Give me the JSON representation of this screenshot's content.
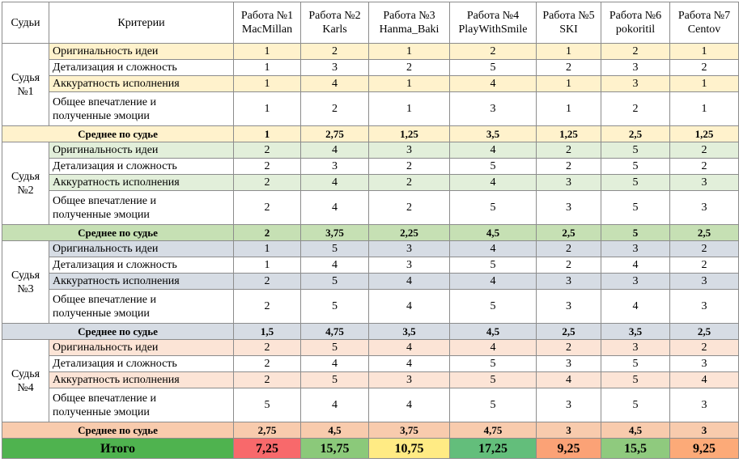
{
  "header": {
    "judges_label": "Судьи",
    "criteria_label": "Критерии",
    "works": [
      {
        "label": "Работа №1",
        "name": "MacMillan"
      },
      {
        "label": "Работа №2",
        "name": "Karls"
      },
      {
        "label": "Работа №3",
        "name": "Hanma_Baki"
      },
      {
        "label": "Работа №4",
        "name": "PlayWithSmile"
      },
      {
        "label": "Работа №5",
        "name": "SKI"
      },
      {
        "label": "Работа №6",
        "name": "pokoritil"
      },
      {
        "label": "Работа №7",
        "name": "Centov"
      }
    ]
  },
  "blocks": [
    {
      "judge": "Судья №1",
      "rows": [
        {
          "criterion": "Оригинальность идеи",
          "scores": [
            "1",
            "2",
            "1",
            "2",
            "1",
            "2",
            "1"
          ]
        },
        {
          "criterion": "Детализация и сложность",
          "scores": [
            "1",
            "3",
            "2",
            "5",
            "2",
            "3",
            "2"
          ]
        },
        {
          "criterion": "Аккуратность исполнения",
          "scores": [
            "1",
            "4",
            "1",
            "4",
            "1",
            "3",
            "1"
          ]
        },
        {
          "criterion": "Общее впечатление и полученные эмоции",
          "scores": [
            "1",
            "2",
            "1",
            "3",
            "1",
            "2",
            "1"
          ]
        }
      ],
      "average": {
        "label": "Среднее по судье",
        "scores": [
          "1",
          "2,75",
          "1,25",
          "3,5",
          "1,25",
          "2,5",
          "1,25"
        ]
      }
    },
    {
      "judge": "Судья №2",
      "rows": [
        {
          "criterion": "Оригинальность идеи",
          "scores": [
            "2",
            "4",
            "3",
            "4",
            "2",
            "5",
            "2"
          ]
        },
        {
          "criterion": "Детализация и сложность",
          "scores": [
            "2",
            "3",
            "2",
            "5",
            "2",
            "5",
            "2"
          ]
        },
        {
          "criterion": "Аккуратность исполнения",
          "scores": [
            "2",
            "4",
            "2",
            "4",
            "3",
            "5",
            "3"
          ]
        },
        {
          "criterion": "Общее впечатление и полученные эмоции",
          "scores": [
            "2",
            "4",
            "2",
            "5",
            "3",
            "5",
            "3"
          ]
        }
      ],
      "average": {
        "label": "Среднее по судье",
        "scores": [
          "2",
          "3,75",
          "2,25",
          "4,5",
          "2,5",
          "5",
          "2,5"
        ]
      }
    },
    {
      "judge": "Судья №3",
      "rows": [
        {
          "criterion": "Оригинальность идеи",
          "scores": [
            "1",
            "5",
            "3",
            "4",
            "2",
            "3",
            "2"
          ]
        },
        {
          "criterion": "Детализация и сложность",
          "scores": [
            "1",
            "4",
            "3",
            "5",
            "2",
            "4",
            "2"
          ]
        },
        {
          "criterion": "Аккуратность исполнения",
          "scores": [
            "2",
            "5",
            "4",
            "4",
            "3",
            "3",
            "3"
          ]
        },
        {
          "criterion": "Общее впечатление и полученные эмоции",
          "scores": [
            "2",
            "5",
            "4",
            "5",
            "3",
            "4",
            "3"
          ]
        }
      ],
      "average": {
        "label": "Среднее по судье",
        "scores": [
          "1,5",
          "4,75",
          "3,5",
          "4,5",
          "2,5",
          "3,5",
          "2,5"
        ]
      }
    },
    {
      "judge": "Судья №4",
      "rows": [
        {
          "criterion": "Оригинальность идеи",
          "scores": [
            "2",
            "5",
            "4",
            "4",
            "2",
            "3",
            "2"
          ]
        },
        {
          "criterion": "Детализация и сложность",
          "scores": [
            "2",
            "4",
            "4",
            "5",
            "3",
            "5",
            "3"
          ]
        },
        {
          "criterion": "Аккуратность исполнения",
          "scores": [
            "2",
            "5",
            "3",
            "5",
            "4",
            "5",
            "4"
          ]
        },
        {
          "criterion": "Общее впечатление и полученные эмоции",
          "scores": [
            "5",
            "4",
            "4",
            "5",
            "3",
            "5",
            "3"
          ]
        }
      ],
      "average": {
        "label": "Среднее по судье",
        "scores": [
          "2,75",
          "4,5",
          "3,75",
          "4,75",
          "3",
          "4,5",
          "3"
        ]
      }
    }
  ],
  "total": {
    "label": "Итого",
    "scores": [
      "7,25",
      "15,75",
      "10,75",
      "17,25",
      "9,25",
      "15,5",
      "9,25"
    ]
  }
}
